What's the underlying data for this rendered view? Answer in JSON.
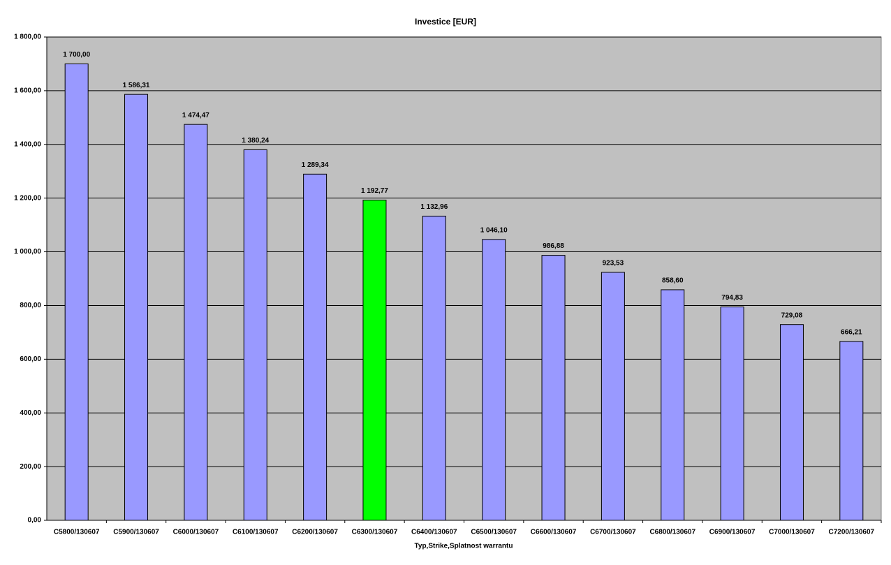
{
  "chart_data": {
    "type": "bar",
    "title": "Investice [EUR]",
    "x_label": "Typ,Strike,Splatnost warrantu",
    "categories": [
      "C5800/130607",
      "C5900/130607",
      "C6000/130607",
      "C6100/130607",
      "C6200/130607",
      "C6300/130607",
      "C6400/130607",
      "C6500/130607",
      "C6600/130607",
      "C6700/130607",
      "C6800/130607",
      "C6900/130607",
      "C7000/130607",
      "C7200/130607"
    ],
    "values": [
      1700.0,
      1586.31,
      1474.47,
      1380.24,
      1289.34,
      1192.77,
      1132.96,
      1046.1,
      986.88,
      923.53,
      858.6,
      794.83,
      729.08,
      666.21
    ],
    "value_labels": [
      "1 700,00",
      "1 586,31",
      "1 474,47",
      "1 380,24",
      "1 289,34",
      "1 192,77",
      "1 132,96",
      "1 046,10",
      "986,88",
      "923,53",
      "858,60",
      "794,83",
      "729,08",
      "666,21"
    ],
    "colors": [
      "#9999ff",
      "#9999ff",
      "#9999ff",
      "#9999ff",
      "#9999ff",
      "#00ff00",
      "#9999ff",
      "#9999ff",
      "#9999ff",
      "#9999ff",
      "#9999ff",
      "#9999ff",
      "#9999ff",
      "#9999ff"
    ],
    "ylim": [
      0,
      1800
    ],
    "yticks": [
      {
        "value": 0,
        "label": "0,00"
      },
      {
        "value": 200,
        "label": "200,00"
      },
      {
        "value": 400,
        "label": "400,00"
      },
      {
        "value": 600,
        "label": "600,00"
      },
      {
        "value": 800,
        "label": "800,00"
      },
      {
        "value": 1000,
        "label": "1 000,00"
      },
      {
        "value": 1200,
        "label": "1 200,00"
      },
      {
        "value": 1400,
        "label": "1 400,00"
      },
      {
        "value": 1600,
        "label": "1 600,00"
      },
      {
        "value": 1800,
        "label": "1 800,00"
      }
    ],
    "grid": true
  }
}
